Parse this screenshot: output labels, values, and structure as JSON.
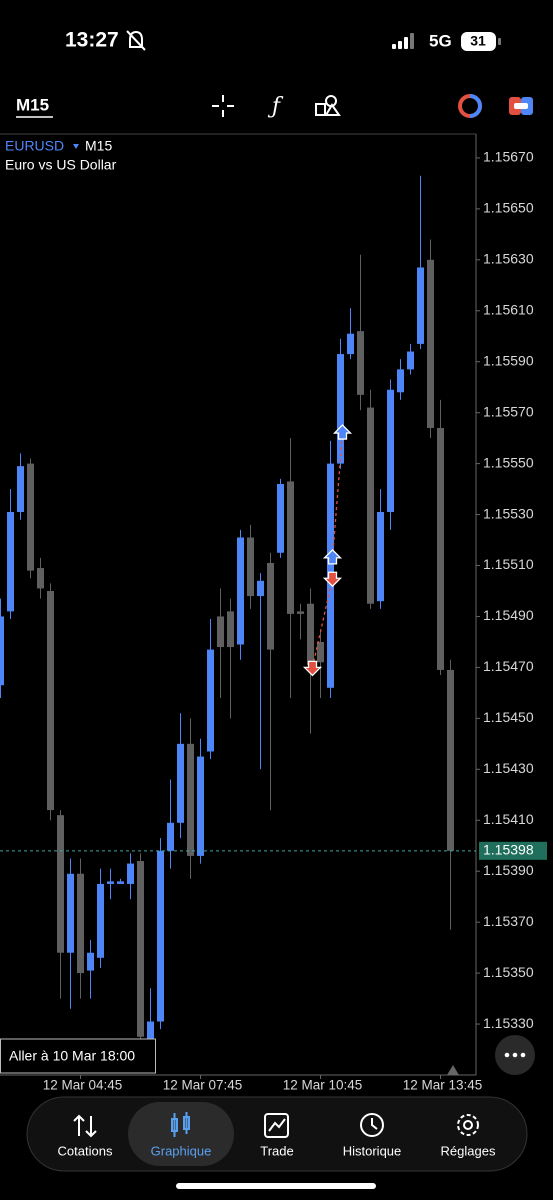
{
  "status_bar": {
    "time": "13:27",
    "network": "5G",
    "battery": "31"
  },
  "toolbar": {
    "timeframe": "M15"
  },
  "chart_data": {
    "type": "candlestick",
    "symbol": "EURUSD",
    "timeframe": "M15",
    "description": "Euro vs US Dollar",
    "up_color": "#4f86f7",
    "down_color": "#606060",
    "categories": [
      null,
      null,
      null,
      null,
      null,
      null,
      null,
      null,
      "12 Mar 04:45",
      null,
      null,
      null,
      null,
      null,
      null,
      null,
      null,
      null,
      null,
      null,
      "12 Mar 07:45",
      null,
      null,
      null,
      null,
      null,
      null,
      null,
      null,
      null,
      null,
      null,
      "12 Mar 10:45",
      null,
      null,
      null,
      null,
      null,
      null,
      null,
      null,
      null,
      null,
      null,
      "12 Mar 13:45",
      null
    ],
    "candles": [
      {
        "open": 1.15463,
        "high": 1.15497,
        "low": 1.15458,
        "close": 1.1549
      },
      {
        "open": 1.15492,
        "high": 1.1554,
        "low": 1.15489,
        "close": 1.15531
      },
      {
        "open": 1.15531,
        "high": 1.15554,
        "low": 1.15528,
        "close": 1.15549
      },
      {
        "open": 1.1555,
        "high": 1.15552,
        "low": 1.15505,
        "close": 1.15508
      },
      {
        "open": 1.15509,
        "high": 1.15513,
        "low": 1.15497,
        "close": 1.15501
      },
      {
        "open": 1.155,
        "high": 1.15503,
        "low": 1.1541,
        "close": 1.15414
      },
      {
        "open": 1.15412,
        "high": 1.15414,
        "low": 1.1534,
        "close": 1.15358
      },
      {
        "open": 1.15358,
        "high": 1.15395,
        "low": 1.15336,
        "close": 1.15389
      },
      {
        "open": 1.15389,
        "high": 1.15395,
        "low": 1.1534,
        "close": 1.1535
      },
      {
        "open": 1.15351,
        "high": 1.15363,
        "low": 1.1534,
        "close": 1.15358
      },
      {
        "open": 1.15356,
        "high": 1.15391,
        "low": 1.15352,
        "close": 1.15385
      },
      {
        "open": 1.15385,
        "high": 1.15391,
        "low": 1.15379,
        "close": 1.15386
      },
      {
        "open": 1.15385,
        "high": 1.15387,
        "low": 1.15385,
        "close": 1.15386
      },
      {
        "open": 1.15385,
        "high": 1.15397,
        "low": 1.15379,
        "close": 1.15393
      },
      {
        "open": 1.15394,
        "high": 1.15397,
        "low": 1.15324,
        "close": 1.15325
      },
      {
        "open": 1.15324,
        "high": 1.15344,
        "low": 1.15322,
        "close": 1.15331
      },
      {
        "open": 1.15331,
        "high": 1.15403,
        "low": 1.15328,
        "close": 1.15398
      },
      {
        "open": 1.15398,
        "high": 1.15426,
        "low": 1.15391,
        "close": 1.15409
      },
      {
        "open": 1.15409,
        "high": 1.15452,
        "low": 1.15403,
        "close": 1.1544
      },
      {
        "open": 1.1544,
        "high": 1.1545,
        "low": 1.15387,
        "close": 1.15396
      },
      {
        "open": 1.15396,
        "high": 1.15442,
        "low": 1.15393,
        "close": 1.15435
      },
      {
        "open": 1.15437,
        "high": 1.15489,
        "low": 1.15434,
        "close": 1.15477
      },
      {
        "open": 1.1549,
        "high": 1.15501,
        "low": 1.15458,
        "close": 1.15478
      },
      {
        "open": 1.15492,
        "high": 1.15497,
        "low": 1.1545,
        "close": 1.15478
      },
      {
        "open": 1.15479,
        "high": 1.15524,
        "low": 1.15473,
        "close": 1.15521
      },
      {
        "open": 1.15521,
        "high": 1.15526,
        "low": 1.15493,
        "close": 1.15498
      },
      {
        "open": 1.15498,
        "high": 1.15507,
        "low": 1.1543,
        "close": 1.15504
      },
      {
        "open": 1.15511,
        "high": 1.15515,
        "low": 1.15414,
        "close": 1.15477
      },
      {
        "open": 1.15515,
        "high": 1.15544,
        "low": 1.15513,
        "close": 1.15542
      },
      {
        "open": 1.15543,
        "high": 1.1556,
        "low": 1.15458,
        "close": 1.15491
      },
      {
        "open": 1.15492,
        "high": 1.15495,
        "low": 1.15481,
        "close": 1.15491
      },
      {
        "open": 1.15495,
        "high": 1.15501,
        "low": 1.15444,
        "close": 1.15471
      },
      {
        "open": 1.1548,
        "high": 1.15485,
        "low": 1.15458,
        "close": 1.15472
      },
      {
        "open": 1.15462,
        "high": 1.15559,
        "low": 1.15458,
        "close": 1.1555
      },
      {
        "open": 1.1555,
        "high": 1.15599,
        "low": 1.15548,
        "close": 1.15593
      },
      {
        "open": 1.15593,
        "high": 1.15611,
        "low": 1.15591,
        "close": 1.15601
      },
      {
        "open": 1.15602,
        "high": 1.15632,
        "low": 1.15571,
        "close": 1.15577
      },
      {
        "open": 1.15572,
        "high": 1.15579,
        "low": 1.15493,
        "close": 1.15495
      },
      {
        "open": 1.15496,
        "high": 1.1554,
        "low": 1.15493,
        "close": 1.15531
      },
      {
        "open": 1.15531,
        "high": 1.15583,
        "low": 1.15524,
        "close": 1.15579
      },
      {
        "open": 1.15578,
        "high": 1.15591,
        "low": 1.15575,
        "close": 1.15587
      },
      {
        "open": 1.15587,
        "high": 1.15597,
        "low": 1.15585,
        "close": 1.15594
      },
      {
        "open": 1.15597,
        "high": 1.15663,
        "low": 1.15595,
        "close": 1.15627
      },
      {
        "open": 1.1563,
        "high": 1.15638,
        "low": 1.1556,
        "close": 1.15564
      },
      {
        "open": 1.15564,
        "high": 1.15575,
        "low": 1.15467,
        "close": 1.15469
      },
      {
        "open": 1.15469,
        "high": 1.15473,
        "low": 1.15367,
        "close": 1.15398
      }
    ],
    "ylim": [
      1.1531,
      1.15679
    ],
    "yticks": [
      {
        "value": 1.1567,
        "label": "1.15670"
      },
      {
        "value": 1.1565,
        "label": "1.15650"
      },
      {
        "value": 1.1563,
        "label": "1.15630"
      },
      {
        "value": 1.1561,
        "label": "1.15610"
      },
      {
        "value": 1.1559,
        "label": "1.15590"
      },
      {
        "value": 1.1557,
        "label": "1.15570"
      },
      {
        "value": 1.1555,
        "label": "1.15550"
      },
      {
        "value": 1.1553,
        "label": "1.15530"
      },
      {
        "value": 1.1551,
        "label": "1.15510"
      },
      {
        "value": 1.1549,
        "label": "1.15490"
      },
      {
        "value": 1.1547,
        "label": "1.15470"
      },
      {
        "value": 1.1545,
        "label": "1.15450"
      },
      {
        "value": 1.1543,
        "label": "1.15430"
      },
      {
        "value": 1.1541,
        "label": "1.15410"
      },
      {
        "value": 1.1539,
        "label": "1.15390"
      },
      {
        "value": 1.1537,
        "label": "1.15370"
      },
      {
        "value": 1.1535,
        "label": "1.15350"
      },
      {
        "value": 1.1533,
        "label": "1.15330"
      }
    ],
    "current_price": {
      "value": 1.15398,
      "label": "1.15398"
    },
    "markers": [
      {
        "side": "sell",
        "index": 31,
        "price": 1.1547
      },
      {
        "side": "buy",
        "index": 33,
        "price": 1.15513
      },
      {
        "side": "sell",
        "index": 33,
        "price": 1.15505
      },
      {
        "side": "buy",
        "index": 34,
        "price": 1.15562
      }
    ]
  },
  "goto_button": "Aller à 10 Mar 18:00",
  "nav": [
    {
      "label": "Cotations",
      "active": false
    },
    {
      "label": "Graphique",
      "active": true
    },
    {
      "label": "Trade",
      "active": false
    },
    {
      "label": "Historique",
      "active": false
    },
    {
      "label": "Réglages",
      "active": false
    }
  ]
}
